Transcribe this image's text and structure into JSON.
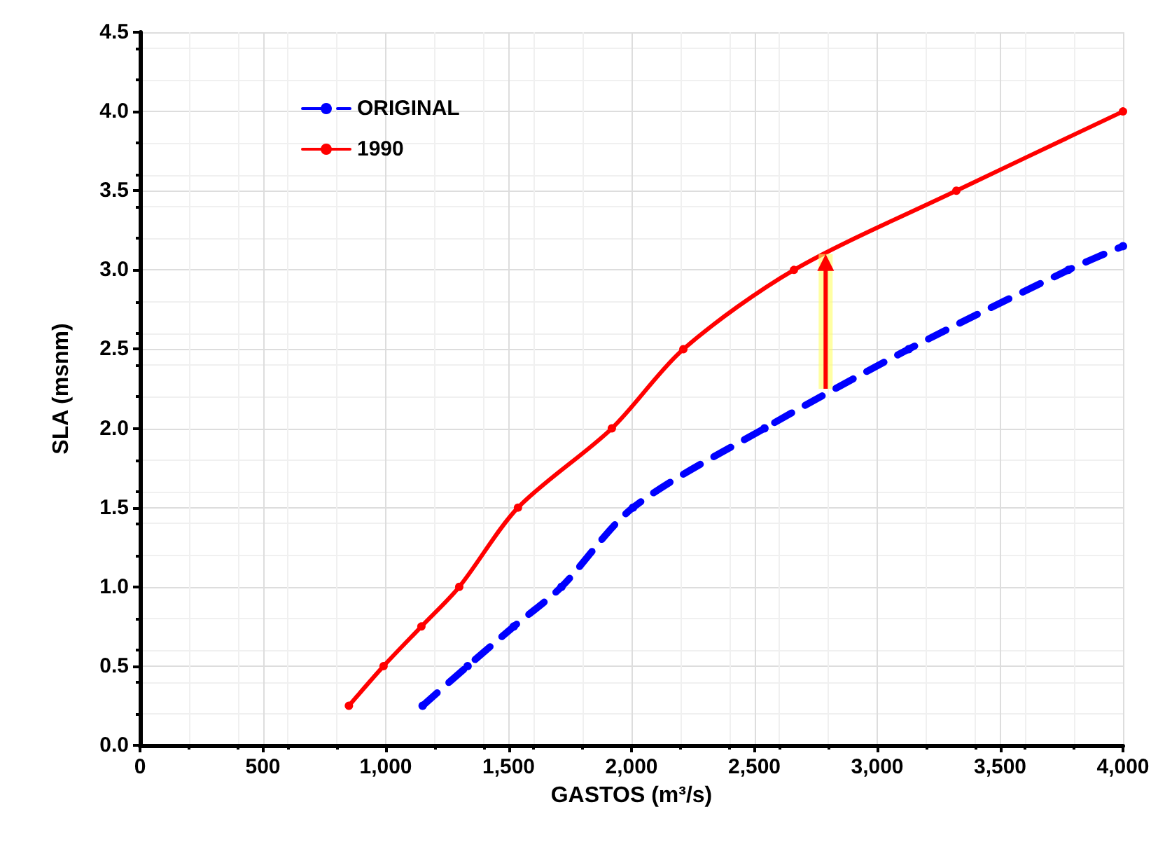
{
  "chart_data": {
    "type": "line",
    "xlabel": "GASTOS (m³/s)",
    "ylabel": "SLA (msnm)",
    "series": [
      {
        "name": "ORIGINAL",
        "color": "#0000ff",
        "line_style": "dashed",
        "x": [
          1150,
          1333,
          1521,
          1715,
          2006,
          2541,
          3128,
          3778,
          4000
        ],
        "values": [
          0.25,
          0.5,
          0.75,
          1.0,
          1.5,
          2.0,
          2.5,
          3.0,
          3.15
        ]
      },
      {
        "name": "1990",
        "color": "#ff0000",
        "line_style": "solid",
        "x": [
          850,
          991,
          1145,
          1299,
          1538,
          1920,
          2211,
          2661,
          3322,
          4000
        ],
        "values": [
          0.25,
          0.5,
          0.75,
          1.0,
          1.5,
          2.0,
          2.5,
          3.0,
          3.5,
          4.0
        ]
      }
    ],
    "xlim": [
      0,
      4000
    ],
    "ylim": [
      0,
      4.5
    ],
    "xticks": [
      0,
      500,
      {
        "value": 1000,
        "label": "1,000"
      },
      {
        "value": 1500,
        "label": "1,500"
      },
      {
        "value": 2000,
        "label": "2,000"
      },
      {
        "value": 2500,
        "label": "2,500"
      },
      {
        "value": 3000,
        "label": "3,000"
      },
      {
        "value": 3500,
        "label": "3,500"
      },
      {
        "value": 4000,
        "label": "4,000"
      }
    ],
    "yticks": [
      {
        "value": 0,
        "label": "0.0"
      },
      {
        "value": 0.5,
        "label": "0.5"
      },
      {
        "value": 1,
        "label": "1.0"
      },
      {
        "value": 1.5,
        "label": "1.5"
      },
      {
        "value": 2,
        "label": "2.0"
      },
      {
        "value": 2.5,
        "label": "2.5"
      },
      {
        "value": 3,
        "label": "3.0"
      },
      {
        "value": 3.5,
        "label": "3.5"
      },
      {
        "value": 4,
        "label": "4.0"
      },
      {
        "value": 4.5,
        "label": "4.5"
      }
    ],
    "grid": true,
    "legend": "top left",
    "marker": "circle"
  }
}
